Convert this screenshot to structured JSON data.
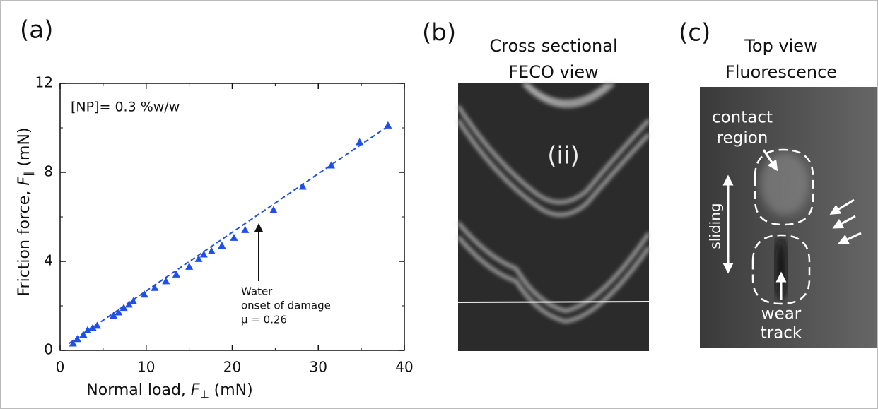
{
  "panels": {
    "a": "(a)",
    "b": "(b)",
    "c": "(c)"
  },
  "chart_data": {
    "type": "scatter",
    "x_label_parts": [
      "Normal load, ",
      "F",
      "⊥",
      " (mN)"
    ],
    "y_label_parts": [
      "Friction force, ",
      "F",
      "∥",
      " (mN)"
    ],
    "xlim": [
      0,
      40
    ],
    "ylim": [
      0,
      12
    ],
    "xticks": [
      0,
      10,
      20,
      30,
      40
    ],
    "yticks": [
      0,
      4,
      8,
      12
    ],
    "xminorticks": [
      5,
      15,
      25,
      35
    ],
    "yminorticks": [
      2,
      6,
      10
    ],
    "annotation": "[NP]= 0.3 %w/w",
    "arrow_note": [
      "Water",
      "onset of damage",
      "μ = 0.26"
    ],
    "series": [
      {
        "color": "#1f4fe6",
        "x": [
          1.5,
          2,
          2.7,
          3.2,
          3.8,
          4.3,
          6.2,
          6.8,
          7.4,
          8,
          8.5,
          9.8,
          11,
          12.3,
          13.5,
          15,
          16.1,
          16.7,
          17.6,
          18.8,
          20.2,
          21.5,
          24.8,
          28.2,
          31.5,
          34.8,
          38.1
        ],
        "values": [
          0.3,
          0.5,
          0.7,
          0.9,
          1.0,
          1.1,
          1.55,
          1.7,
          1.9,
          2.05,
          2.2,
          2.5,
          2.8,
          3.1,
          3.4,
          3.75,
          4.1,
          4.3,
          4.45,
          4.7,
          5.05,
          5.4,
          6.3,
          7.35,
          8.3,
          9.35,
          10.1
        ]
      }
    ],
    "fit": {
      "color": "#1f4fe6",
      "x": [
        1,
        38.2
      ],
      "values": [
        0.3,
        10.1
      ]
    }
  },
  "feco_panel": {
    "title": [
      "Cross sectional",
      "FECO view"
    ],
    "label": "(ii)"
  },
  "fluorescence_panel": {
    "title": [
      "Top view",
      "Fluorescence"
    ],
    "contact": [
      "contact",
      "region"
    ],
    "sliding": "sliding",
    "wear": [
      "wear",
      "track"
    ]
  }
}
